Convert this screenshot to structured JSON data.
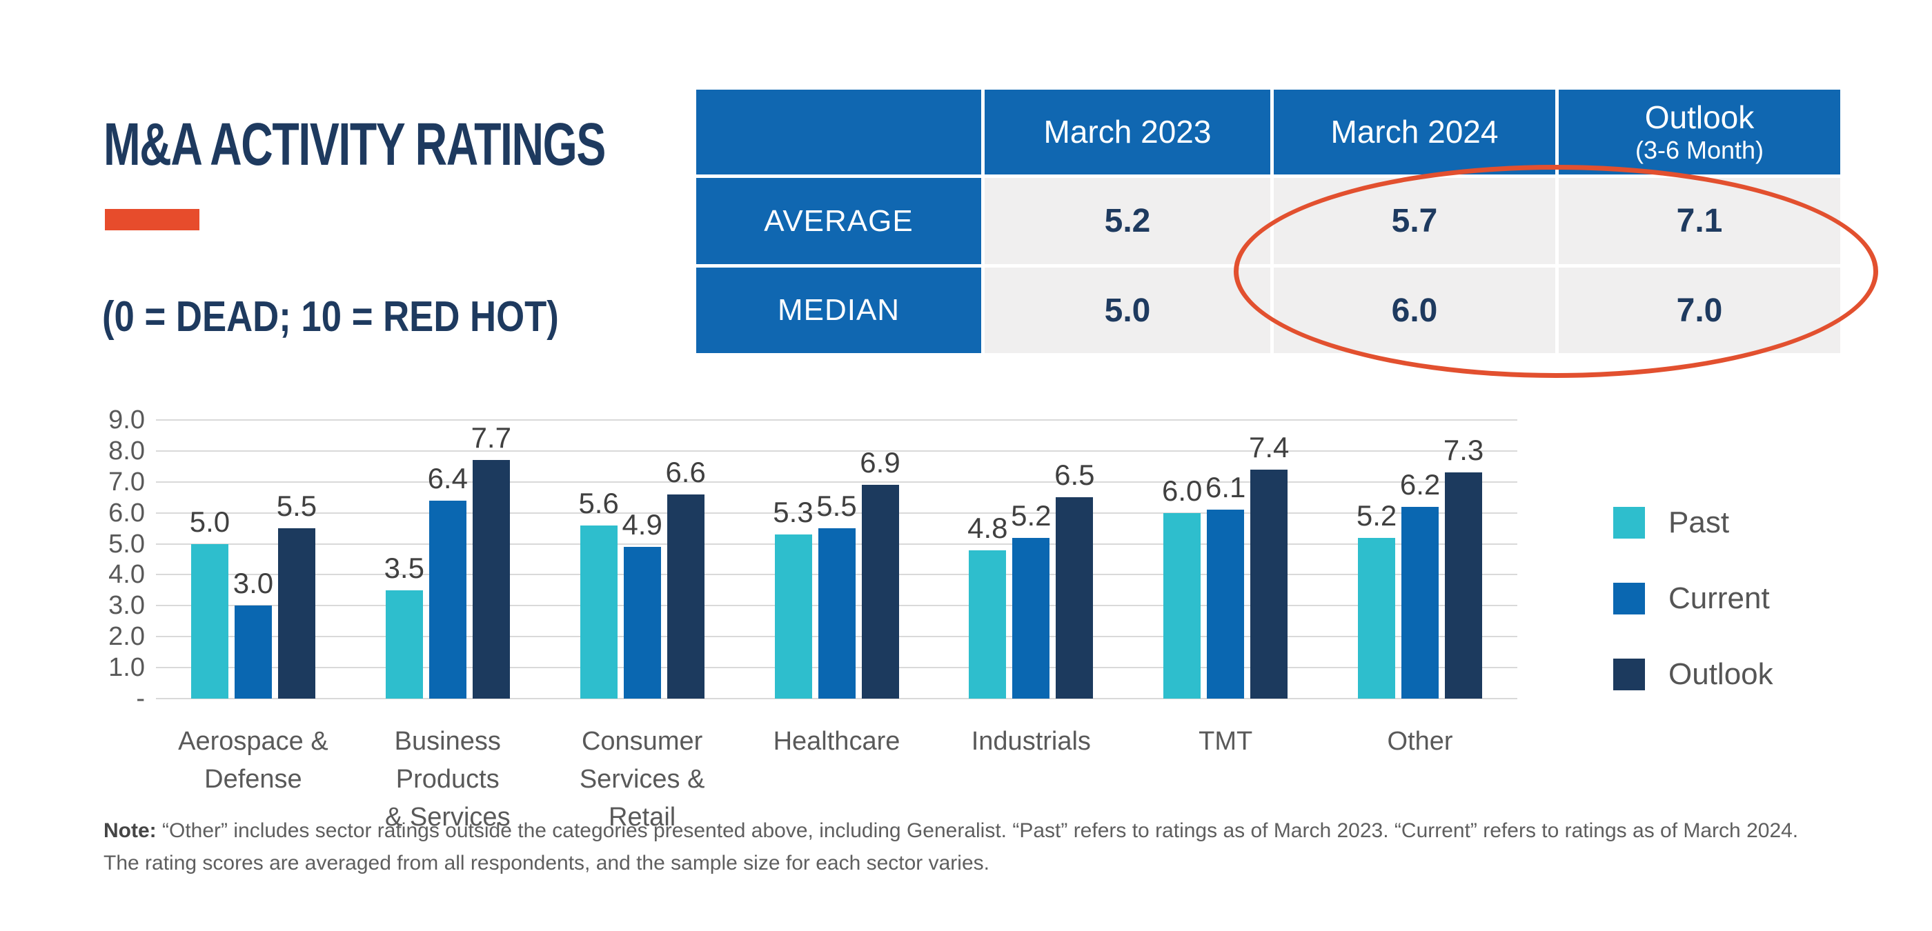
{
  "header": {
    "title": "M&A ACTIVITY RATINGS",
    "subtitle": "(0 = DEAD; 10 = RED HOT)"
  },
  "colors": {
    "navy_text": "#1E3A5F",
    "table_header_blue": "#1067B1",
    "table_cell_gray": "#F0EFEF",
    "accent_red": "#E74C2C",
    "ellipse_red": "#E2502F",
    "gridline_gray": "#D9D9D9",
    "axis_text_gray": "#595959"
  },
  "summary_table": {
    "columns": [
      {
        "label": "March 2023",
        "sublabel": ""
      },
      {
        "label": "March 2024",
        "sublabel": ""
      },
      {
        "label": "Outlook",
        "sublabel": "(3-6 Month)"
      }
    ],
    "rows": [
      {
        "label": "AVERAGE",
        "values": [
          "5.2",
          "5.7",
          "7.1"
        ]
      },
      {
        "label": "MEDIAN",
        "values": [
          "5.0",
          "6.0",
          "7.0"
        ]
      }
    ],
    "highlight": "red ellipse around March 2024 and Outlook columns"
  },
  "chart_data": {
    "type": "bar",
    "categories": [
      "Aerospace &\nDefense",
      "Business Products\n& Services",
      "Consumer\nServices & Retail",
      "Healthcare",
      "Industrials",
      "TMT",
      "Other"
    ],
    "series": [
      {
        "name": "Past",
        "color": "#2EBECD",
        "values": [
          5.0,
          3.5,
          5.6,
          5.3,
          4.8,
          6.0,
          5.2
        ]
      },
      {
        "name": "Current",
        "color": "#0A67B1",
        "values": [
          3.0,
          6.4,
          4.9,
          5.5,
          5.2,
          6.1,
          6.2
        ]
      },
      {
        "name": "Outlook",
        "color": "#1C3A5E",
        "values": [
          5.5,
          7.7,
          6.6,
          6.9,
          6.5,
          7.4,
          7.3
        ]
      }
    ],
    "ylim": [
      0,
      9
    ],
    "yticks": [
      "9.0",
      "8.0",
      "7.0",
      "6.0",
      "5.0",
      "4.0",
      "3.0",
      "2.0",
      "1.0",
      "-"
    ],
    "grid": true,
    "legend_position": "right",
    "value_labels": true
  },
  "note": {
    "label": "Note:",
    "line1": "“Other” includes sector ratings outside the categories presented above, including Generalist. “Past” refers to ratings as of March 2023. “Current” refers to ratings as of March 2024.",
    "line2": "The rating scores are averaged from all respondents, and the sample size for each sector varies."
  }
}
